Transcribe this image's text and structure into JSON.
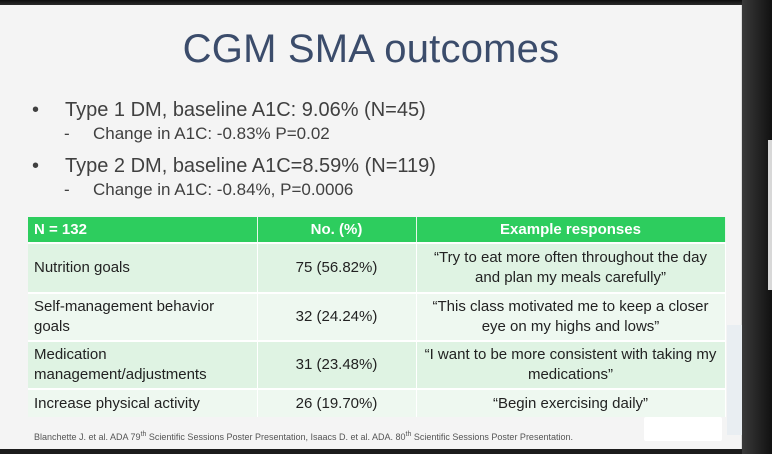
{
  "title": "CGM SMA outcomes",
  "bullets": [
    {
      "text": "Type 1 DM, baseline A1C: 9.06% (N=45)",
      "sub": "Change in A1C: -0.83% P=0.02"
    },
    {
      "text": "Type 2 DM, baseline A1C=8.59% (N=119)",
      "sub": "Change in A1C:  -0.84%, P=0.0006"
    }
  ],
  "table": {
    "headers": [
      "N = 132",
      "No. (%)",
      "Example responses"
    ],
    "rows": [
      [
        "Nutrition goals",
        "75 (56.82%)",
        "“Try to eat more often throughout the day and plan my meals carefully”"
      ],
      [
        "Self-management behavior goals",
        "32 (24.24%)",
        "“This class motivated me to keep a closer eye on my highs and lows”"
      ],
      [
        "Medication management/adjustments",
        "31 (23.48%)",
        "“I want to be more consistent with taking my medications”"
      ],
      [
        "Increase physical activity",
        "26 (19.70%)",
        "“Begin exercising daily”"
      ]
    ]
  },
  "footnote": {
    "part1": "Blanchette J. et al. ADA 79",
    "sup1": "th",
    "part2": " Scientific Sessions Poster Presentation, Isaacs D. et al. ADA. 80",
    "sup2": "th",
    "part3": " Scientific Sessions Poster Presentation."
  }
}
